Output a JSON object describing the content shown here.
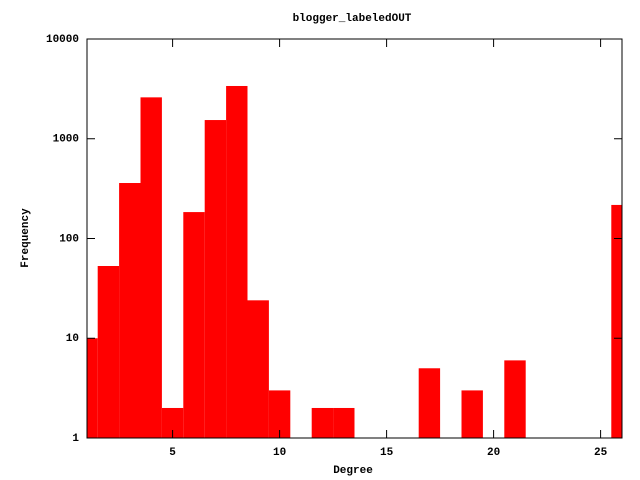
{
  "chart_data": {
    "type": "bar",
    "title": "blogger_labeledOUT",
    "x_label": "Degree",
    "y_label": "Frequency",
    "x": [
      1,
      2,
      3,
      4,
      5,
      6,
      7,
      8,
      9,
      10,
      12,
      13,
      17,
      19,
      21,
      26
    ],
    "values": [
      10,
      53,
      360,
      2600,
      2,
      184,
      1540,
      3380,
      24,
      3,
      2,
      2,
      5,
      3,
      6,
      217
    ],
    "color": "#ff0000",
    "xlim": [
      1,
      26
    ],
    "xticks": [
      5,
      10,
      15,
      20,
      25
    ],
    "ylim": [
      1,
      10000
    ],
    "yticks": [
      1,
      10,
      100,
      1000,
      10000
    ],
    "log_y": true
  }
}
